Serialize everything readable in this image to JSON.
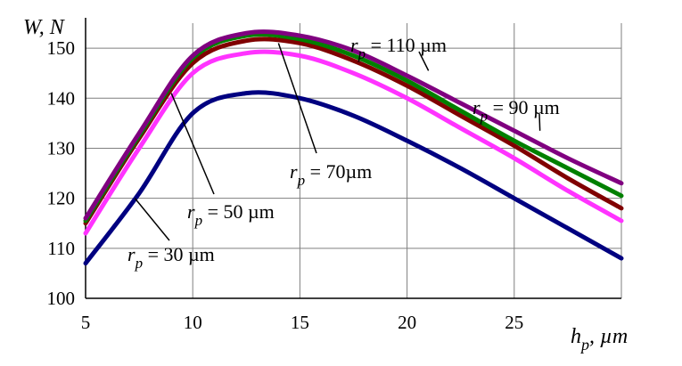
{
  "chart_data": {
    "type": "line",
    "ylabel": "W, N",
    "xlabel": "h_p, µm",
    "xlim": [
      5,
      30
    ],
    "ylim": [
      100,
      155
    ],
    "x_ticks": [
      5,
      10,
      15,
      20,
      25
    ],
    "y_ticks": [
      100,
      110,
      120,
      130,
      140,
      150
    ],
    "grid": true,
    "x": [
      5,
      7.5,
      10,
      12.5,
      15,
      17.5,
      20,
      22.5,
      25,
      27.5,
      30
    ],
    "series": [
      {
        "name": "r_p = 30 µm",
        "color": "#000080",
        "values": [
          107,
          121,
          137,
          141,
          140,
          136.5,
          131.5,
          126,
          120,
          114,
          108
        ]
      },
      {
        "name": "r_p = 50 µm",
        "color": "#ff33ff",
        "values": [
          113,
          130,
          145,
          149,
          148.5,
          145,
          140,
          134,
          128,
          121.5,
          115.5
        ]
      },
      {
        "name": "r_p = 70 µm",
        "color": "#800000",
        "values": [
          115,
          132,
          147,
          151.5,
          151,
          147.5,
          142.5,
          136.5,
          130.5,
          124,
          118
        ]
      },
      {
        "name": "r_p = 90 µm",
        "color": "#008000",
        "values": [
          115.5,
          132.5,
          148,
          152.5,
          151.8,
          148.5,
          143.5,
          137.5,
          131.5,
          126,
          120.5
        ]
      },
      {
        "name": "r_p = 110 µm",
        "color": "#800080",
        "values": [
          116,
          133,
          148.5,
          153,
          152.5,
          149.5,
          144.5,
          139,
          133.5,
          128,
          123
        ]
      }
    ],
    "annotations": [
      {
        "text_main": "r",
        "text_sub": "p",
        "text_rest": " = 110 µm",
        "x": 21,
        "y": 145.5
      },
      {
        "text_main": "r",
        "text_sub": "p",
        "text_rest": "  = 90 µm",
        "x": 26,
        "y": 133.5
      },
      {
        "text_main": "r",
        "text_sub": "p",
        "text_rest": " = 70µm",
        "x": 14,
        "y": 151
      },
      {
        "text_main": "r",
        "text_sub": "p",
        "text_rest": "  = 50 µm",
        "x": 9,
        "y": 141
      },
      {
        "text_main": "r",
        "text_sub": "p",
        "text_rest": "  = 30 µm",
        "x": 7.3,
        "y": 120
      }
    ]
  }
}
